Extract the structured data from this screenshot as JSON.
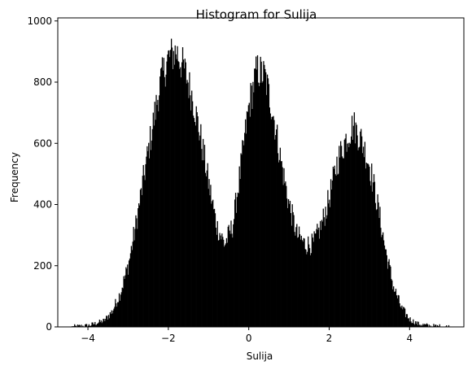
{
  "chart_data": {
    "type": "histogram",
    "title": "Histogram for Sulija",
    "xlabel": "Sulija",
    "ylabel": "Frequency",
    "xlim": [
      -4.75,
      5.35
    ],
    "ylim": [
      0,
      1010
    ],
    "x_ticks": [
      -4,
      -2,
      0,
      2,
      4
    ],
    "x_tick_labels": [
      "−4",
      "−2",
      "0",
      "2",
      "4"
    ],
    "y_ticks": [
      0,
      200,
      400,
      600,
      800,
      1000
    ],
    "y_tick_labels": [
      "0",
      "200",
      "400",
      "600",
      "800",
      "1000"
    ],
    "bar_color": "#000000",
    "bin_range": [
      -4.4,
      5.0
    ],
    "bin_count": 500,
    "profile": [
      [
        -4.4,
        0
      ],
      [
        -4.0,
        4
      ],
      [
        -3.6,
        20
      ],
      [
        -3.4,
        50
      ],
      [
        -3.2,
        110
      ],
      [
        -3.0,
        200
      ],
      [
        -2.8,
        340
      ],
      [
        -2.6,
        500
      ],
      [
        -2.4,
        650
      ],
      [
        -2.2,
        800
      ],
      [
        -2.0,
        880
      ],
      [
        -1.8,
        900
      ],
      [
        -1.6,
        840
      ],
      [
        -1.4,
        750
      ],
      [
        -1.2,
        620
      ],
      [
        -1.0,
        470
      ],
      [
        -0.8,
        330
      ],
      [
        -0.6,
        270
      ],
      [
        -0.4,
        330
      ],
      [
        -0.2,
        520
      ],
      [
        0.0,
        720
      ],
      [
        0.2,
        840
      ],
      [
        0.4,
        820
      ],
      [
        0.6,
        700
      ],
      [
        0.8,
        540
      ],
      [
        1.0,
        400
      ],
      [
        1.2,
        300
      ],
      [
        1.4,
        270
      ],
      [
        1.6,
        270
      ],
      [
        1.8,
        330
      ],
      [
        2.0,
        420
      ],
      [
        2.2,
        540
      ],
      [
        2.4,
        610
      ],
      [
        2.6,
        660
      ],
      [
        2.8,
        610
      ],
      [
        3.0,
        530
      ],
      [
        3.2,
        400
      ],
      [
        3.4,
        250
      ],
      [
        3.6,
        130
      ],
      [
        3.8,
        60
      ],
      [
        4.0,
        25
      ],
      [
        4.2,
        10
      ],
      [
        4.5,
        3
      ],
      [
        5.0,
        0
      ]
    ]
  }
}
